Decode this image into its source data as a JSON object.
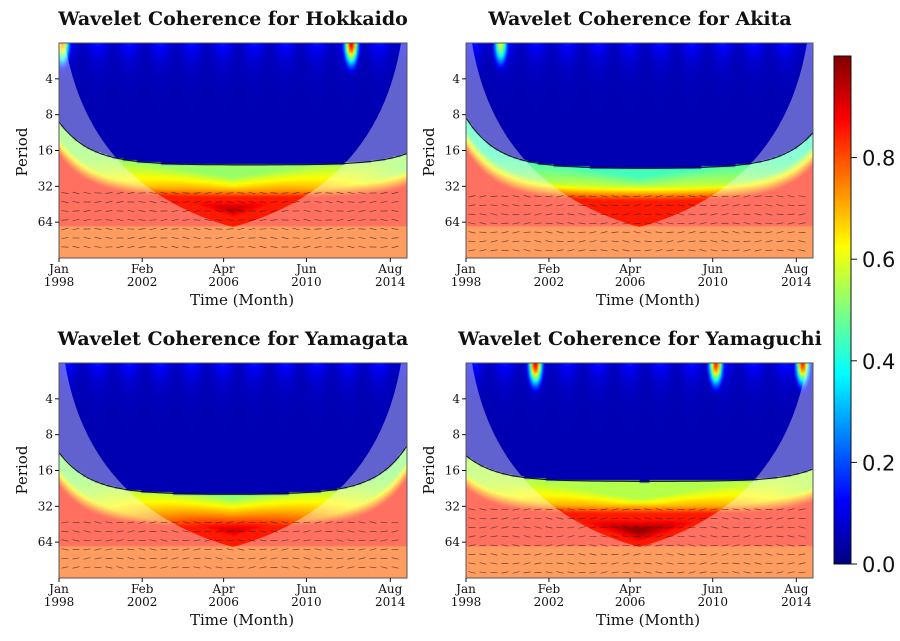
{
  "chart_data": [
    {
      "type": "heatmap",
      "title": "Wavelet Coherence for Hokkaido",
      "xlabel": "Time (Month)",
      "ylabel": "Period",
      "x_ticks": [
        {
          "line1": "Jan",
          "line2": "1998",
          "t": 0
        },
        {
          "line1": "Feb",
          "line2": "2002",
          "t": 0.239
        },
        {
          "line1": "Apr",
          "line2": "2006",
          "t": 0.473
        },
        {
          "line1": "Jun",
          "line2": "2010",
          "t": 0.711
        },
        {
          "line1": "Aug",
          "line2": "2014",
          "t": 0.952
        }
      ],
      "y_ticks": [
        4,
        8,
        16,
        32,
        64
      ],
      "period_range": [
        2,
        128
      ],
      "contour_band_period": 30,
      "band_peak_t": 0.5,
      "band_peak_period": 76,
      "band_intensity": 0.95,
      "top_hotspots": [
        {
          "t": 0.84,
          "value": 0.9
        },
        {
          "t": 0.01,
          "value": 0.75
        }
      ],
      "low_period_side_left": 13,
      "low_period_side_right": 24
    },
    {
      "type": "heatmap",
      "title": "Wavelet Coherence for Akita",
      "xlabel": "Time (Month)",
      "ylabel": "Period",
      "x_ticks": [
        {
          "line1": "Jan",
          "line2": "1998",
          "t": 0
        },
        {
          "line1": "Feb",
          "line2": "2002",
          "t": 0.239
        },
        {
          "line1": "Apr",
          "line2": "2006",
          "t": 0.473
        },
        {
          "line1": "Jun",
          "line2": "2010",
          "t": 0.711
        },
        {
          "line1": "Aug",
          "line2": "2014",
          "t": 0.952
        }
      ],
      "y_ticks": [
        4,
        8,
        16,
        32,
        64
      ],
      "period_range": [
        2,
        128
      ],
      "contour_band_period": 32,
      "band_peak_t": 0.5,
      "band_peak_period": 76,
      "band_intensity": 0.8,
      "top_hotspots": [
        {
          "t": 0.1,
          "value": 0.6
        }
      ],
      "low_period_side_left": 12,
      "low_period_side_right": 16
    },
    {
      "type": "heatmap",
      "title": "Wavelet Coherence for Yamagata",
      "xlabel": "Time (Month)",
      "ylabel": "Period",
      "x_ticks": [
        {
          "line1": "Jan",
          "line2": "1998",
          "t": 0
        },
        {
          "line1": "Feb",
          "line2": "2002",
          "t": 0.239
        },
        {
          "line1": "Apr",
          "line2": "2006",
          "t": 0.473
        },
        {
          "line1": "Jun",
          "line2": "2010",
          "t": 0.711
        },
        {
          "line1": "Aug",
          "line2": "2014",
          "t": 0.952
        }
      ],
      "y_ticks": [
        4,
        8,
        16,
        32,
        64
      ],
      "period_range": [
        2,
        128
      ],
      "contour_band_period": 36,
      "band_peak_t": 0.5,
      "band_peak_period": 78,
      "band_intensity": 0.93,
      "top_hotspots": [],
      "low_period_side_left": 16,
      "low_period_side_right": 14
    },
    {
      "type": "heatmap",
      "title": "Wavelet Coherence for Yamaguchi",
      "xlabel": "Time (Month)",
      "ylabel": "Period",
      "x_ticks": [
        {
          "line1": "Jan",
          "line2": "1998",
          "t": 0
        },
        {
          "line1": "Feb",
          "line2": "2002",
          "t": 0.239
        },
        {
          "line1": "Apr",
          "line2": "2006",
          "t": 0.473
        },
        {
          "line1": "Jun",
          "line2": "2010",
          "t": 0.711
        },
        {
          "line1": "Aug",
          "line2": "2014",
          "t": 0.952
        }
      ],
      "y_ticks": [
        4,
        8,
        16,
        32,
        64
      ],
      "period_range": [
        2,
        128
      ],
      "contour_band_period": 28,
      "band_peak_t": 0.5,
      "band_peak_period": 78,
      "band_intensity": 1.0,
      "top_hotspots": [
        {
          "t": 0.2,
          "value": 0.9
        },
        {
          "t": 0.72,
          "value": 0.85
        },
        {
          "t": 0.97,
          "value": 0.85
        }
      ],
      "low_period_side_left": 17,
      "low_period_side_right": 22
    }
  ],
  "colorbar": {
    "range": [
      0,
      1
    ],
    "ticks": [
      "0.0",
      "0.2",
      "0.4",
      "0.6",
      "0.8"
    ],
    "tick_values": [
      0,
      0.2,
      0.4,
      0.6,
      0.8
    ],
    "colormap": [
      "#00007f",
      "#0000ff",
      "#007fff",
      "#00ffff",
      "#7fff7f",
      "#ffff00",
      "#ff7f00",
      "#ff0000",
      "#7f0000"
    ]
  }
}
